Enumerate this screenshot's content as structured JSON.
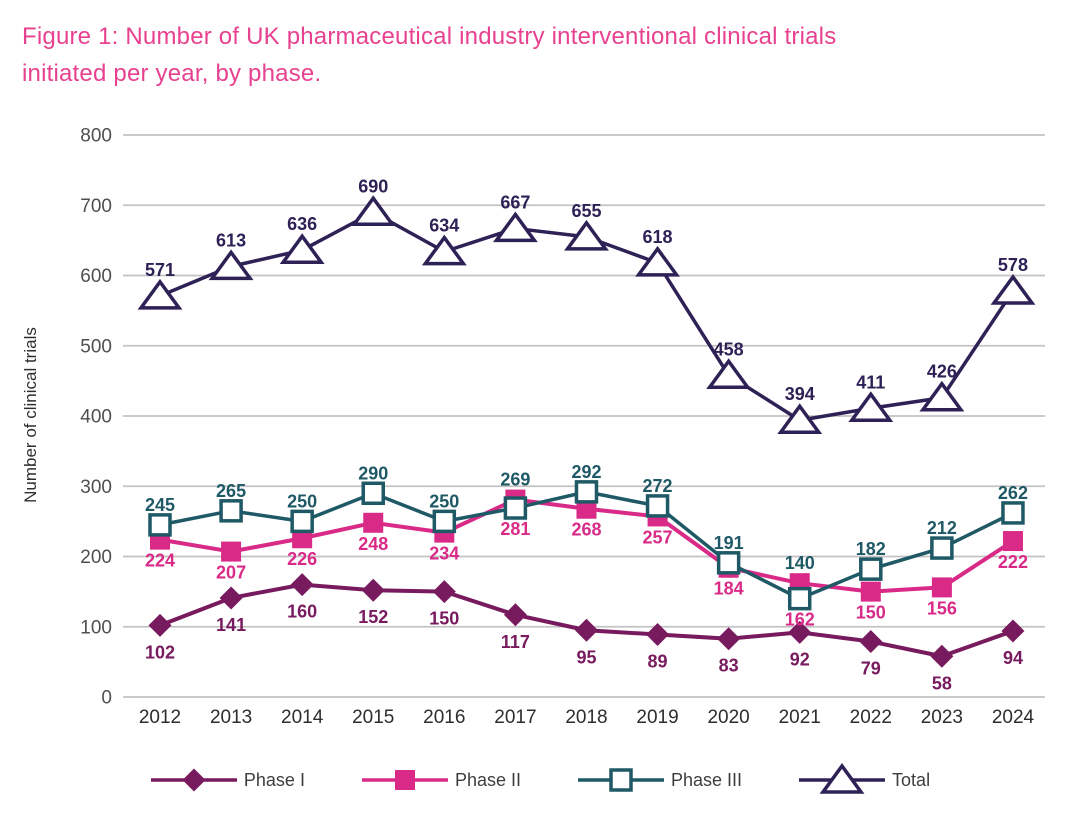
{
  "figure": {
    "title_line1": "Figure 1: Number of UK pharmaceutical industry interventional clinical trials",
    "title_line2": "initiated per year, by phase.",
    "title_color": "#e7418f"
  },
  "axes": {
    "ylabel": "Number of clinical trials",
    "ytick_labels": [
      "0",
      "100",
      "200",
      "300",
      "400",
      "500",
      "600",
      "700",
      "800"
    ],
    "xtick_labels": [
      "2012",
      "2013",
      "2014",
      "2015",
      "2016",
      "2017",
      "2018",
      "2019",
      "2020",
      "2021",
      "2022",
      "2023",
      "2024"
    ]
  },
  "chart_data": {
    "type": "line",
    "title": "Figure 1: Number of UK pharmaceutical industry interventional clinical trials initiated per year, by phase.",
    "xlabel": "",
    "ylabel": "Number of clinical trials",
    "ylim": [
      0,
      800
    ],
    "ytick_step": 100,
    "grid": true,
    "legend_position": "bottom",
    "categories": [
      2012,
      2013,
      2014,
      2015,
      2016,
      2017,
      2018,
      2019,
      2020,
      2021,
      2022,
      2023,
      2024
    ],
    "series": [
      {
        "name": "Phase I",
        "marker": "diamond-filled",
        "color": "#781a5e",
        "values": [
          102,
          141,
          160,
          152,
          150,
          117,
          95,
          89,
          83,
          92,
          79,
          58,
          94
        ]
      },
      {
        "name": "Phase II",
        "marker": "square-filled",
        "color": "#d92a87",
        "values": [
          224,
          207,
          226,
          248,
          234,
          281,
          268,
          257,
          184,
          162,
          150,
          156,
          222
        ]
      },
      {
        "name": "Phase III",
        "marker": "square-open",
        "color": "#1f5966",
        "values": [
          245,
          265,
          250,
          290,
          250,
          269,
          292,
          272,
          191,
          140,
          182,
          212,
          262
        ]
      },
      {
        "name": "Total",
        "marker": "triangle-open",
        "color": "#2e2156",
        "values": [
          571,
          613,
          636,
          690,
          634,
          667,
          655,
          618,
          458,
          394,
          411,
          426,
          578
        ]
      }
    ],
    "colors": {
      "gridline": "#c3c3c3",
      "ytick_text": "#4f4f4f",
      "xtick_text": "#2d2d2d",
      "legend_text": "#3d3d3d"
    }
  }
}
